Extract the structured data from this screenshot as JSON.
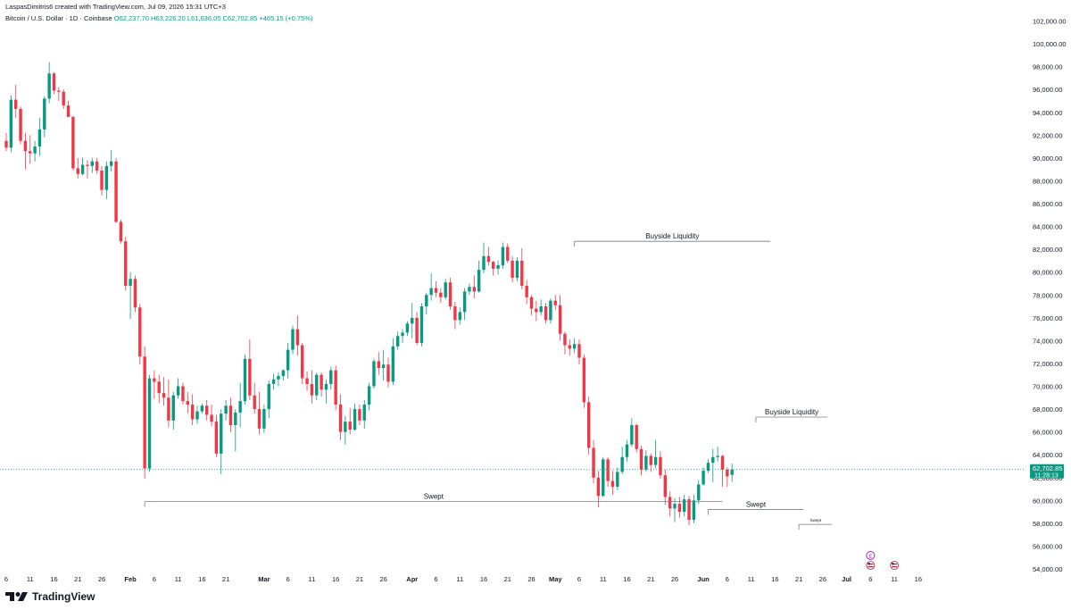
{
  "header": {
    "credit": "LaspasDimitris6 created with TradingView.com, Jul 09, 2026 15:31 UTC+3",
    "symbol": "Bitcoin / U.S. Dollar · 1D · Coinbase",
    "ohlc": "O62,237.70 H63,226.20 L61,636.05 C62,702.85 +465.15 (+0.75%)"
  },
  "brand": {
    "name": "TradingView"
  },
  "colors": {
    "up": "#089981",
    "down": "#f23645",
    "line": "#787b86"
  },
  "chart_data": {
    "type": "candlestick",
    "ylim": [
      53200,
      103000
    ],
    "y_ticks": [
      "54,000.00",
      "56,000.00",
      "58,000.00",
      "60,000.00",
      "62,000.00",
      "64,000.00",
      "66,000.00",
      "68,000.00",
      "70,000.00",
      "72,000.00",
      "74,000.00",
      "76,000.00",
      "78,000.00",
      "80,000.00",
      "82,000.00",
      "84,000.00",
      "86,000.00",
      "88,000.00",
      "90,000.00",
      "92,000.00",
      "94,000.00",
      "96,000.00",
      "98,000.00",
      "100,000.00",
      "102,000.00"
    ],
    "x_ticks": [
      "6",
      "11",
      "16",
      "21",
      "26",
      "Feb",
      "6",
      "11",
      "16",
      "21",
      "Mar",
      "6",
      "11",
      "16",
      "21",
      "26",
      "Apr",
      "6",
      "11",
      "16",
      "21",
      "26",
      "May",
      "6",
      "11",
      "16",
      "21",
      "26",
      "Jun",
      "6",
      "11",
      "16",
      "21",
      "26",
      "Jul",
      "6",
      "11",
      "16"
    ],
    "x_tick_day_index": [
      0,
      5,
      10,
      15,
      20,
      26,
      31,
      36,
      41,
      46,
      54,
      59,
      64,
      69,
      74,
      79,
      85,
      90,
      95,
      100,
      105,
      110,
      115,
      120,
      125,
      130,
      135,
      140,
      146,
      151,
      156,
      161,
      166,
      171,
      176,
      181,
      186,
      191
    ],
    "last_price": {
      "value": 62702.85,
      "label": "62,702.85",
      "countdown": "11:28:13"
    },
    "candles": [
      [
        91500,
        92200,
        90600,
        90900
      ],
      [
        90900,
        95500,
        90500,
        95100
      ],
      [
        95100,
        96400,
        93500,
        94300
      ],
      [
        94300,
        94500,
        91200,
        91500
      ],
      [
        91500,
        92200,
        89000,
        90600
      ],
      [
        90600,
        92000,
        89500,
        90400
      ],
      [
        90400,
        91500,
        89700,
        91000
      ],
      [
        91000,
        93500,
        90200,
        92500
      ],
      [
        92500,
        95400,
        91800,
        95200
      ],
      [
        95200,
        98400,
        94800,
        97400
      ],
      [
        97400,
        97500,
        95600,
        95900
      ],
      [
        95900,
        96200,
        95000,
        95800
      ],
      [
        95800,
        96000,
        94300,
        94600
      ],
      [
        94600,
        95000,
        93600,
        93600
      ],
      [
        93600,
        93700,
        88900,
        89100
      ],
      [
        89100,
        90000,
        88200,
        88600
      ],
      [
        88600,
        90000,
        88500,
        89400
      ],
      [
        89400,
        89800,
        88200,
        89300
      ],
      [
        89300,
        90000,
        88700,
        89700
      ],
      [
        89700,
        90000,
        88600,
        88900
      ],
      [
        88900,
        89300,
        86700,
        87200
      ],
      [
        87200,
        89700,
        86400,
        89300
      ],
      [
        89300,
        90700,
        88800,
        89700
      ],
      [
        89700,
        90000,
        84300,
        84400
      ],
      [
        84400,
        84600,
        82500,
        82700
      ],
      [
        82700,
        83100,
        78400,
        78800
      ],
      [
        78800,
        80000,
        75900,
        79400
      ],
      [
        79400,
        79700,
        76500,
        76900
      ],
      [
        76900,
        77200,
        71900,
        72600
      ],
      [
        72600,
        73500,
        61900,
        62800
      ],
      [
        62800,
        71000,
        62500,
        70700
      ],
      [
        70700,
        71400,
        68900,
        70400
      ],
      [
        70400,
        71000,
        68500,
        69400
      ],
      [
        69400,
        70800,
        68300,
        69000
      ],
      [
        69000,
        70600,
        66400,
        67000
      ],
      [
        67000,
        69500,
        66200,
        69200
      ],
      [
        69200,
        70700,
        68900,
        70000
      ],
      [
        70000,
        70300,
        68400,
        68700
      ],
      [
        68700,
        69500,
        67600,
        68400
      ],
      [
        68400,
        69300,
        66600,
        67100
      ],
      [
        67100,
        68300,
        66700,
        67800
      ],
      [
        67800,
        68500,
        67600,
        68300
      ],
      [
        68300,
        68800,
        67000,
        67500
      ],
      [
        67500,
        68400,
        66500,
        66900
      ],
      [
        66900,
        67500,
        63800,
        64100
      ],
      [
        64100,
        68000,
        62300,
        67600
      ],
      [
        67600,
        68800,
        67000,
        68300
      ],
      [
        68300,
        69000,
        66000,
        66600
      ],
      [
        66600,
        68000,
        64300,
        67700
      ],
      [
        67700,
        70300,
        66400,
        68700
      ],
      [
        68700,
        72800,
        68400,
        72400
      ],
      [
        72400,
        74100,
        68800,
        69200
      ],
      [
        69200,
        70300,
        67600,
        68000
      ],
      [
        68000,
        69500,
        65800,
        66300
      ],
      [
        66300,
        68400,
        65900,
        68000
      ],
      [
        68000,
        70500,
        67200,
        70200
      ],
      [
        70200,
        71100,
        69700,
        70600
      ],
      [
        70600,
        71200,
        70000,
        70900
      ],
      [
        70900,
        71500,
        70500,
        71400
      ],
      [
        71400,
        73800,
        70700,
        73200
      ],
      [
        73200,
        75300,
        72800,
        75000
      ],
      [
        75000,
        76200,
        72700,
        73600
      ],
      [
        73600,
        73800,
        70200,
        70700
      ],
      [
        70700,
        71300,
        69600,
        70200
      ],
      [
        70200,
        71400,
        68500,
        69200
      ],
      [
        69200,
        71200,
        68800,
        71000
      ],
      [
        71000,
        71200,
        69100,
        69700
      ],
      [
        69700,
        70600,
        68500,
        70200
      ],
      [
        70200,
        71700,
        69700,
        71400
      ],
      [
        71400,
        71800,
        67900,
        68400
      ],
      [
        68400,
        69300,
        65300,
        66000
      ],
      [
        66000,
        67400,
        64900,
        66900
      ],
      [
        66900,
        68100,
        65800,
        66200
      ],
      [
        66200,
        68500,
        66100,
        68000
      ],
      [
        68000,
        68400,
        66600,
        67000
      ],
      [
        67000,
        68800,
        66300,
        68400
      ],
      [
        68400,
        70300,
        67900,
        70000
      ],
      [
        70000,
        72400,
        69800,
        72200
      ],
      [
        72200,
        73000,
        71000,
        71600
      ],
      [
        71600,
        73200,
        70500,
        71900
      ],
      [
        71900,
        72500,
        69900,
        70400
      ],
      [
        70400,
        74200,
        70100,
        73500
      ],
      [
        73500,
        74800,
        73200,
        74400
      ],
      [
        74400,
        75000,
        73800,
        74700
      ],
      [
        74700,
        75700,
        74400,
        75500
      ],
      [
        75500,
        77300,
        74200,
        76000
      ],
      [
        76000,
        76500,
        73600,
        73800
      ],
      [
        73800,
        77300,
        73500,
        77000
      ],
      [
        77000,
        78200,
        76300,
        78000
      ],
      [
        78000,
        79900,
        77500,
        78600
      ],
      [
        78600,
        79200,
        77800,
        78200
      ],
      [
        78200,
        78600,
        77300,
        77800
      ],
      [
        77800,
        79400,
        77600,
        79100
      ],
      [
        79100,
        79500,
        76700,
        77000
      ],
      [
        77000,
        77400,
        75000,
        75800
      ],
      [
        75800,
        76900,
        75400,
        76500
      ],
      [
        76500,
        78600,
        75800,
        78300
      ],
      [
        78300,
        79000,
        78000,
        78700
      ],
      [
        78700,
        79700,
        77700,
        78300
      ],
      [
        78300,
        81000,
        78200,
        80200
      ],
      [
        80200,
        82600,
        79900,
        81400
      ],
      [
        81400,
        82200,
        80600,
        80900
      ],
      [
        80900,
        81000,
        79700,
        80300
      ],
      [
        80300,
        81000,
        79800,
        80600
      ],
      [
        80600,
        82600,
        80300,
        82200
      ],
      [
        82200,
        82500,
        80800,
        81000
      ],
      [
        81000,
        81400,
        79100,
        79500
      ],
      [
        79500,
        81300,
        79200,
        81000
      ],
      [
        81000,
        82100,
        78500,
        78800
      ],
      [
        78800,
        79300,
        77200,
        77800
      ],
      [
        77800,
        78000,
        76200,
        76800
      ],
      [
        76800,
        77500,
        75700,
        76500
      ],
      [
        76500,
        77600,
        76200,
        77000
      ],
      [
        77000,
        77300,
        75500,
        75800
      ],
      [
        75800,
        77700,
        75500,
        77500
      ],
      [
        77500,
        78000,
        76700,
        77100
      ],
      [
        77100,
        78000,
        74000,
        74600
      ],
      [
        74600,
        74800,
        72800,
        73600
      ],
      [
        73600,
        74100,
        72700,
        73300
      ],
      [
        73300,
        74200,
        72900,
        73700
      ],
      [
        73700,
        74100,
        71900,
        72500
      ],
      [
        72500,
        72800,
        68100,
        68600
      ],
      [
        68600,
        69100,
        64000,
        64600
      ],
      [
        64600,
        65300,
        61500,
        62000
      ],
      [
        62000,
        62600,
        59400,
        60400
      ],
      [
        60400,
        63800,
        60300,
        63600
      ],
      [
        63600,
        63800,
        61200,
        61700
      ],
      [
        61700,
        62600,
        60500,
        61200
      ],
      [
        61200,
        62900,
        60900,
        62500
      ],
      [
        62500,
        64700,
        62300,
        63800
      ],
      [
        63800,
        65300,
        63400,
        64900
      ],
      [
        64900,
        67200,
        64700,
        66600
      ],
      [
        66600,
        66700,
        64200,
        64500
      ],
      [
        64500,
        64800,
        62200,
        62700
      ],
      [
        62700,
        64400,
        62500,
        63900
      ],
      [
        63900,
        64100,
        62500,
        63100
      ],
      [
        63100,
        65300,
        62800,
        63800
      ],
      [
        63800,
        64300,
        61900,
        62200
      ],
      [
        62200,
        62700,
        59600,
        60300
      ],
      [
        60300,
        60800,
        58600,
        59300
      ],
      [
        59300,
        60200,
        58100,
        59700
      ],
      [
        59700,
        60300,
        58500,
        59000
      ],
      [
        59000,
        60500,
        58600,
        60100
      ],
      [
        60100,
        60400,
        57800,
        58300
      ],
      [
        58300,
        60500,
        58000,
        60000
      ],
      [
        60000,
        61800,
        59700,
        61400
      ],
      [
        61400,
        62900,
        61300,
        62600
      ],
      [
        62600,
        63600,
        62400,
        63300
      ],
      [
        63300,
        64500,
        61600,
        63800
      ],
      [
        63800,
        64700,
        63400,
        63900
      ],
      [
        63900,
        64000,
        61200,
        62700
      ],
      [
        62700,
        62900,
        61200,
        62100
      ],
      [
        62237.7,
        63226.2,
        61636.05,
        62702.85
      ]
    ],
    "annotations": [
      {
        "text": "Buyside Liquidity",
        "price": 82700,
        "from_day": 119,
        "to_day": 160
      },
      {
        "text": "Buyside Liquidity",
        "price": 67300,
        "from_day": 157,
        "to_day": 172
      },
      {
        "text": "Swept",
        "price": 59900,
        "from_day": 29,
        "to_day": 150
      },
      {
        "text": "Swept",
        "price": 59200,
        "from_day": 147,
        "to_day": 167
      },
      {
        "text": "Swept",
        "price": 57900,
        "from_day": 166,
        "to_day": 173
      }
    ],
    "markers": [
      {
        "icon": "earnings-icon",
        "day": 181,
        "label": "E"
      },
      {
        "icon": "us-flag-icon",
        "day": 181
      },
      {
        "icon": "us-flag-icon",
        "day": 186
      }
    ]
  }
}
